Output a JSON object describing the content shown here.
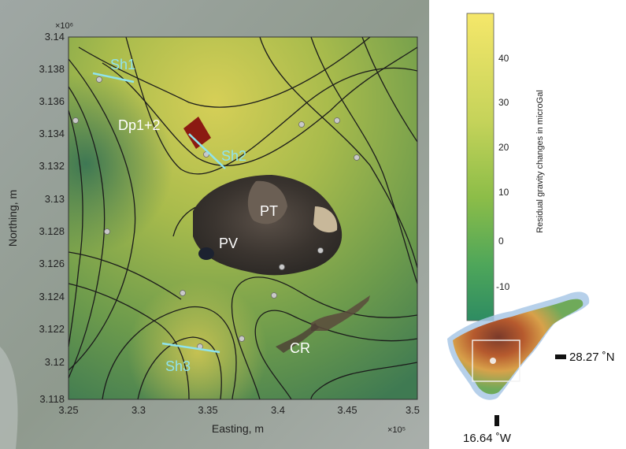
{
  "map": {
    "x_axis_label": "Easting, m",
    "y_axis_label": "Northing, m",
    "x_exponent": "×10⁵",
    "y_exponent": "×10⁶",
    "x_ticks": [
      "3.25",
      "3.3",
      "3.35",
      "3.4",
      "3.45",
      "3.5"
    ],
    "y_ticks": [
      "3.14",
      "3.138",
      "3.136",
      "3.134",
      "3.132",
      "3.13",
      "3.128",
      "3.126",
      "3.124",
      "3.122",
      "3.12",
      "3.118"
    ],
    "site_labels": {
      "dp": "Dp1+2",
      "pt": "PT",
      "pv": "PV",
      "cr": "CR"
    },
    "profile_labels": {
      "sh1": "Sh1",
      "sh2": "Sh2",
      "sh3": "Sh3"
    },
    "colors": {
      "profile": "#8fe3ee",
      "deposit": "#8b1a12",
      "station": "#c9c9c9"
    }
  },
  "colorbar": {
    "label": "Residual gravity changes in microGal",
    "ticks": [
      "40",
      "30",
      "20",
      "10",
      "0",
      "-10"
    ],
    "colors": {
      "top": "#f5e76a",
      "mid": "#a4c64a",
      "bottom": "#2e8c62"
    }
  },
  "inset": {
    "lat_label": "28.27 ˚N",
    "lon_label": "16.64 ˚W"
  }
}
